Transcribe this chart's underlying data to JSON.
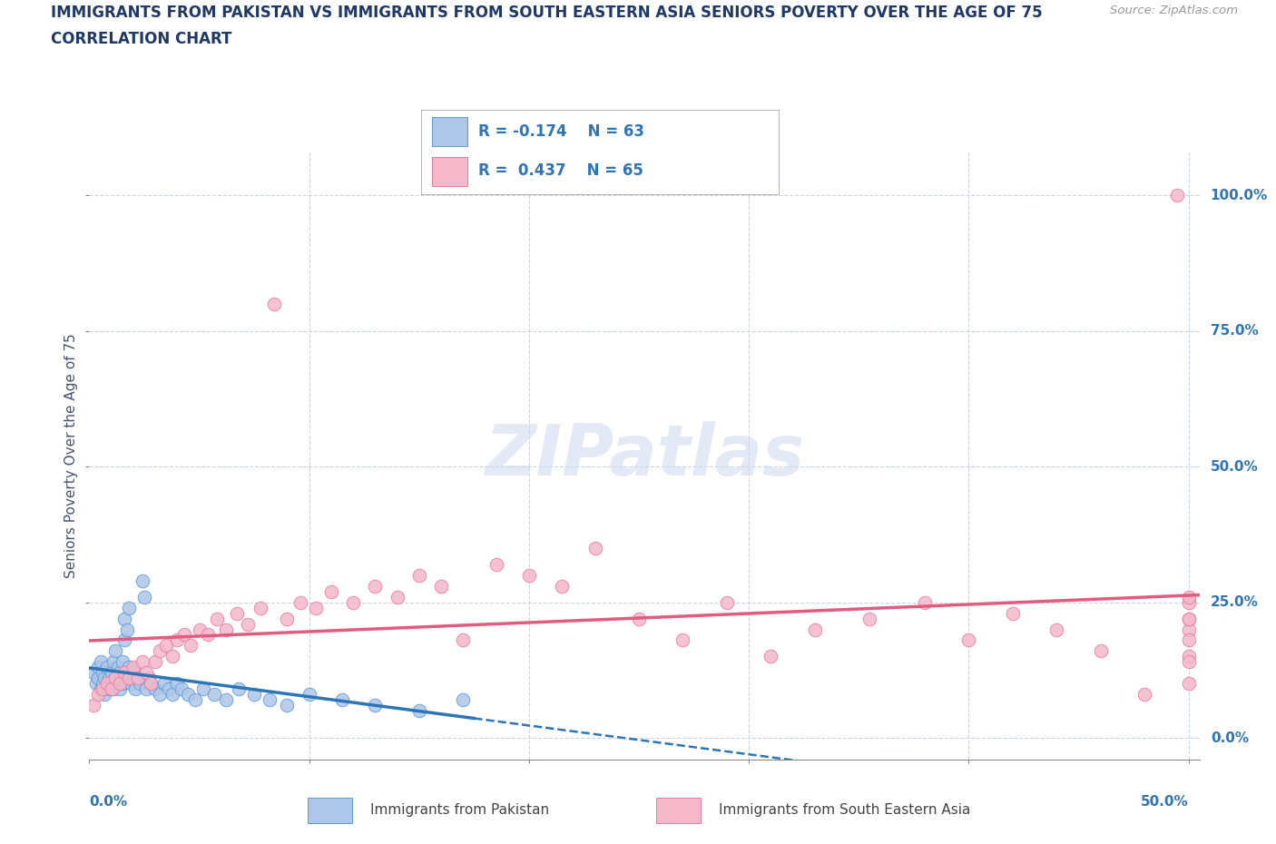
{
  "title_line1": "IMMIGRANTS FROM PAKISTAN VS IMMIGRANTS FROM SOUTH EASTERN ASIA SENIORS POVERTY OVER THE AGE OF 75",
  "title_line2": "CORRELATION CHART",
  "source_text": "Source: ZipAtlas.com",
  "ylabel": "Seniors Poverty Over the Age of 75",
  "watermark": "ZIPatlas",
  "series1_color": "#aec6e8",
  "series1_edge": "#5b9bd5",
  "series2_color": "#f4b8ca",
  "series2_edge": "#e87aa0",
  "trendline1_solid_color": "#2e75b6",
  "trendline2_color": "#e05c80",
  "background_color": "#ffffff",
  "grid_color": "#c8d4e8",
  "title_color": "#1f3864",
  "axis_label_color": "#44546a",
  "tick_color": "#2e75b6",
  "legend_text_color": "#2e75b6",
  "pakistan_x": [
    0.002,
    0.003,
    0.004,
    0.004,
    0.005,
    0.005,
    0.006,
    0.006,
    0.007,
    0.007,
    0.008,
    0.008,
    0.009,
    0.009,
    0.01,
    0.01,
    0.011,
    0.011,
    0.012,
    0.012,
    0.013,
    0.013,
    0.014,
    0.014,
    0.015,
    0.015,
    0.016,
    0.016,
    0.017,
    0.017,
    0.018,
    0.018,
    0.019,
    0.02,
    0.021,
    0.022,
    0.023,
    0.024,
    0.025,
    0.026,
    0.027,
    0.028,
    0.03,
    0.032,
    0.034,
    0.036,
    0.038,
    0.04,
    0.042,
    0.045,
    0.048,
    0.052,
    0.057,
    0.062,
    0.068,
    0.075,
    0.082,
    0.09,
    0.1,
    0.115,
    0.13,
    0.15,
    0.17
  ],
  "pakistan_y": [
    0.12,
    0.1,
    0.11,
    0.13,
    0.09,
    0.14,
    0.1,
    0.12,
    0.08,
    0.11,
    0.1,
    0.13,
    0.09,
    0.11,
    0.12,
    0.1,
    0.14,
    0.09,
    0.16,
    0.11,
    0.1,
    0.13,
    0.09,
    0.12,
    0.1,
    0.14,
    0.22,
    0.18,
    0.2,
    0.11,
    0.24,
    0.13,
    0.1,
    0.12,
    0.09,
    0.11,
    0.1,
    0.29,
    0.26,
    0.09,
    0.11,
    0.1,
    0.09,
    0.08,
    0.1,
    0.09,
    0.08,
    0.1,
    0.09,
    0.08,
    0.07,
    0.09,
    0.08,
    0.07,
    0.09,
    0.08,
    0.07,
    0.06,
    0.08,
    0.07,
    0.06,
    0.05,
    0.07
  ],
  "sea_x": [
    0.002,
    0.004,
    0.006,
    0.008,
    0.01,
    0.012,
    0.014,
    0.016,
    0.018,
    0.02,
    0.022,
    0.024,
    0.026,
    0.028,
    0.03,
    0.032,
    0.035,
    0.038,
    0.04,
    0.043,
    0.046,
    0.05,
    0.054,
    0.058,
    0.062,
    0.067,
    0.072,
    0.078,
    0.084,
    0.09,
    0.096,
    0.103,
    0.11,
    0.12,
    0.13,
    0.14,
    0.15,
    0.16,
    0.17,
    0.185,
    0.2,
    0.215,
    0.23,
    0.25,
    0.27,
    0.29,
    0.31,
    0.33,
    0.355,
    0.38,
    0.4,
    0.42,
    0.44,
    0.46,
    0.48,
    0.495,
    0.5,
    0.5,
    0.5,
    0.5,
    0.5,
    0.5,
    0.5,
    0.5,
    0.5
  ],
  "sea_y": [
    0.06,
    0.08,
    0.09,
    0.1,
    0.09,
    0.11,
    0.1,
    0.12,
    0.11,
    0.13,
    0.11,
    0.14,
    0.12,
    0.1,
    0.14,
    0.16,
    0.17,
    0.15,
    0.18,
    0.19,
    0.17,
    0.2,
    0.19,
    0.22,
    0.2,
    0.23,
    0.21,
    0.24,
    0.8,
    0.22,
    0.25,
    0.24,
    0.27,
    0.25,
    0.28,
    0.26,
    0.3,
    0.28,
    0.18,
    0.32,
    0.3,
    0.28,
    0.35,
    0.22,
    0.18,
    0.25,
    0.15,
    0.2,
    0.22,
    0.25,
    0.18,
    0.23,
    0.2,
    0.16,
    0.08,
    1.0,
    0.25,
    0.2,
    0.15,
    0.22,
    0.18,
    0.1,
    0.26,
    0.14,
    0.22
  ],
  "xlim": [
    0,
    0.505
  ],
  "ylim": [
    -0.04,
    1.08
  ],
  "xticks": [
    0,
    0.1,
    0.2,
    0.3,
    0.4,
    0.5
  ],
  "yticks": [
    0.0,
    0.25,
    0.5,
    0.75,
    1.0
  ],
  "ytick_labels": [
    "0.0%",
    "25.0%",
    "50.0%",
    "75.0%",
    "100.0%"
  ]
}
